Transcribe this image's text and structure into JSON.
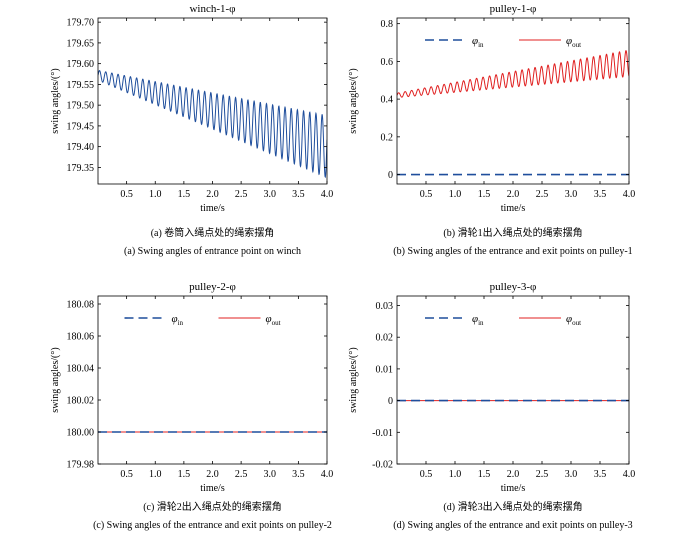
{
  "colors": {
    "blue": "#1f4e9c",
    "red": "#e02020",
    "axis": "#000000"
  },
  "chart_data": [
    {
      "type": "line",
      "title": "winch-1-φ",
      "xlabel": "time/s",
      "ylabel": "swing angles/(°)",
      "xlim": [
        0,
        4.0
      ],
      "ylim": [
        179.31,
        179.71
      ],
      "xticks": [
        "0.5",
        "1.0",
        "1.5",
        "2.0",
        "2.5",
        "3.0",
        "3.5",
        "4.0"
      ],
      "yticks": [
        "179.35",
        "179.40",
        "179.45",
        "179.50",
        "179.55",
        "179.60",
        "179.65",
        "179.70"
      ],
      "caption_cn": "(a) 卷筒入绳点处的绳索摆角",
      "caption_en": "(a)  Swing angles of entrance point on winch",
      "series": [
        {
          "color": "blue",
          "style": "solid",
          "mean_start": 179.572,
          "mean_end": 179.4,
          "amp_start": 0.012,
          "amp_end": 0.075,
          "period": 0.108
        }
      ]
    },
    {
      "type": "line",
      "title": "pulley-1-φ",
      "xlabel": "time/s",
      "ylabel": "swing angles/(°)",
      "xlim": [
        0,
        4.0
      ],
      "ylim": [
        -0.05,
        0.83
      ],
      "xticks": [
        "0.5",
        "1.0",
        "1.5",
        "2.0",
        "2.5",
        "3.0",
        "3.5",
        "4.0"
      ],
      "yticks": [
        "0",
        "0.2",
        "0.4",
        "0.6",
        "0.8"
      ],
      "legend": [
        {
          "symbol": "φ",
          "sub": "in",
          "color": "blue",
          "style": "dashed"
        },
        {
          "symbol": "φ",
          "sub": "out",
          "color": "red",
          "style": "solid"
        }
      ],
      "legend_position": "top",
      "caption_cn": "(b) 滑轮1出入绳点处的绳索摆角",
      "caption_en": "(b)  Swing angles of the entrance and exit points on pulley-1",
      "series": [
        {
          "color": "blue",
          "style": "dashed",
          "constant": 0.0
        },
        {
          "color": "red",
          "style": "solid",
          "mean_start": 0.42,
          "mean_end": 0.59,
          "amp_start": 0.012,
          "amp_end": 0.07,
          "period": 0.112
        }
      ]
    },
    {
      "type": "line",
      "title": "pulley-2-φ",
      "xlabel": "time/s",
      "ylabel": "swing angles/(°)",
      "xlim": [
        0,
        4.0
      ],
      "ylim": [
        179.98,
        180.085
      ],
      "xticks": [
        "0.5",
        "1.0",
        "1.5",
        "2.0",
        "2.5",
        "3.0",
        "3.5",
        "4.0"
      ],
      "yticks": [
        "179.98",
        "180.00",
        "180.02",
        "180.04",
        "180.06",
        "180.08"
      ],
      "legend": [
        {
          "symbol": "φ",
          "sub": "in",
          "color": "blue",
          "style": "dashed"
        },
        {
          "symbol": "φ",
          "sub": "out",
          "color": "red",
          "style": "solid"
        }
      ],
      "legend_position": "top",
      "caption_cn": "(c) 滑轮2出入绳点处的绳索摆角",
      "caption_en": "(c)  Swing angles of the entrance and exit points on pulley-2",
      "series": [
        {
          "color": "red",
          "style": "solid",
          "constant": 180.0
        },
        {
          "color": "blue",
          "style": "dashed",
          "constant": 180.0
        }
      ]
    },
    {
      "type": "line",
      "title": "pulley-3-φ",
      "xlabel": "time/s",
      "ylabel": "swing angles/(°)",
      "xlim": [
        0,
        4.0
      ],
      "ylim": [
        -0.02,
        0.033
      ],
      "xticks": [
        "0.5",
        "1.0",
        "1.5",
        "2.0",
        "2.5",
        "3.0",
        "3.5",
        "4.0"
      ],
      "yticks": [
        "-0.02",
        "-0.01",
        "0",
        "0.01",
        "0.02",
        "0.03"
      ],
      "legend": [
        {
          "symbol": "φ",
          "sub": "in",
          "color": "blue",
          "style": "dashed"
        },
        {
          "symbol": "φ",
          "sub": "out",
          "color": "red",
          "style": "solid"
        }
      ],
      "legend_position": "top",
      "caption_cn": "(d) 滑轮3出入绳点处的绳索摆角",
      "caption_en": "(d)  Swing angles of the entrance and exit points on pulley-3",
      "series": [
        {
          "color": "red",
          "style": "solid",
          "constant": 0.0
        },
        {
          "color": "blue",
          "style": "dashed",
          "constant": 0.0
        }
      ]
    }
  ]
}
